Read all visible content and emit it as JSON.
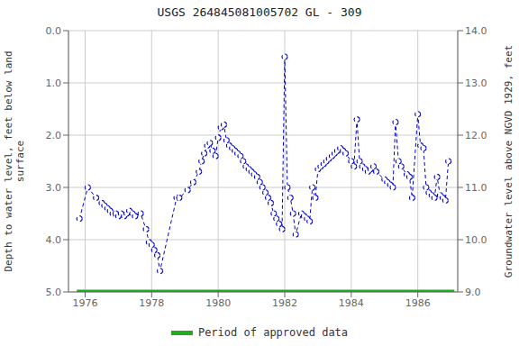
{
  "chart_data": {
    "type": "line",
    "title": "USGS 264845081005702 GL - 309",
    "y_label": "Depth to water level, feet below land\nsurface",
    "y2_label": "Groundwater level above NGVD 1929, feet",
    "xlim": [
      1975.5,
      1987.2
    ],
    "xticks": [
      1976,
      1978,
      1980,
      1982,
      1984,
      1986
    ],
    "ylim": [
      5.0,
      0.0
    ],
    "yticks": [
      {
        "value": 0.0,
        "label": "0.0"
      },
      {
        "value": 1.0,
        "label": "1.0"
      },
      {
        "value": 2.0,
        "label": "2.0"
      },
      {
        "value": 3.0,
        "label": "3.0"
      },
      {
        "value": 4.0,
        "label": "4.0"
      },
      {
        "value": 5.0,
        "label": "5.0"
      }
    ],
    "y2lim": [
      9.0,
      14.0
    ],
    "y2ticks": [
      {
        "value": 9.0,
        "label": "9.0"
      },
      {
        "value": 10.0,
        "label": "10.0"
      },
      {
        "value": 11.0,
        "label": "11.0"
      },
      {
        "value": 12.0,
        "label": "12.0"
      },
      {
        "value": 13.0,
        "label": "13.0"
      },
      {
        "value": 14.0,
        "label": "14.0"
      }
    ],
    "grid": true,
    "legend": "bottom",
    "series": [
      {
        "type": "line",
        "color": "#0000cc",
        "marker": "circle",
        "line_style": "dashed",
        "x": [
          1975.83,
          1976.08,
          1976.33,
          1976.5,
          1976.58,
          1976.67,
          1976.75,
          1976.83,
          1976.92,
          1977.0,
          1977.08,
          1977.17,
          1977.25,
          1977.33,
          1977.42,
          1977.5,
          1977.67,
          1977.83,
          1977.92,
          1978.0,
          1978.08,
          1978.17,
          1978.25,
          1978.75,
          1978.83,
          1979.08,
          1979.25,
          1979.42,
          1979.5,
          1979.58,
          1979.67,
          1979.75,
          1979.83,
          1979.92,
          1980.0,
          1980.08,
          1980.17,
          1980.25,
          1980.33,
          1980.42,
          1980.5,
          1980.58,
          1980.67,
          1980.75,
          1980.83,
          1980.92,
          1981.0,
          1981.08,
          1981.17,
          1981.25,
          1981.33,
          1981.42,
          1981.5,
          1981.58,
          1981.67,
          1981.75,
          1981.83,
          1981.92,
          1982.0,
          1982.08,
          1982.17,
          1982.25,
          1982.33,
          1982.5,
          1982.58,
          1982.67,
          1982.75,
          1982.83,
          1982.92,
          1983.0,
          1983.08,
          1983.17,
          1983.25,
          1983.33,
          1983.42,
          1983.5,
          1983.58,
          1983.67,
          1983.75,
          1983.83,
          1984.0,
          1984.08,
          1984.17,
          1984.25,
          1984.33,
          1984.42,
          1984.5,
          1984.58,
          1984.67,
          1984.75,
          1985.0,
          1985.08,
          1985.17,
          1985.25,
          1985.33,
          1985.42,
          1985.5,
          1985.67,
          1985.75,
          1985.83,
          1986.0,
          1986.08,
          1986.17,
          1986.25,
          1986.33,
          1986.42,
          1986.5,
          1986.58,
          1986.67,
          1986.75,
          1986.83,
          1986.92
        ],
        "values": [
          3.6,
          3.0,
          3.2,
          3.3,
          3.35,
          3.4,
          3.45,
          3.5,
          3.5,
          3.55,
          3.5,
          3.55,
          3.5,
          3.45,
          3.5,
          3.55,
          3.5,
          3.8,
          4.05,
          4.1,
          4.2,
          4.3,
          4.6,
          3.2,
          3.2,
          3.05,
          2.9,
          2.7,
          2.5,
          2.35,
          2.2,
          2.15,
          2.3,
          2.4,
          2.05,
          1.85,
          1.8,
          2.1,
          2.2,
          2.25,
          2.3,
          2.35,
          2.4,
          2.5,
          2.6,
          2.65,
          2.7,
          2.75,
          2.8,
          2.9,
          3.0,
          3.1,
          3.2,
          3.3,
          3.5,
          3.6,
          3.7,
          3.8,
          0.5,
          3.0,
          3.2,
          3.5,
          3.9,
          3.5,
          3.55,
          3.6,
          3.65,
          3.0,
          3.2,
          2.65,
          2.6,
          2.55,
          2.5,
          2.45,
          2.4,
          2.35,
          2.3,
          2.25,
          2.3,
          2.35,
          2.5,
          2.6,
          1.7,
          2.5,
          2.6,
          2.65,
          2.7,
          2.65,
          2.6,
          2.7,
          2.85,
          2.9,
          2.95,
          3.0,
          1.75,
          2.5,
          2.6,
          2.75,
          2.8,
          3.2,
          1.6,
          2.2,
          2.25,
          3.0,
          3.1,
          3.15,
          3.2,
          2.8,
          3.15,
          3.2,
          3.25,
          2.5
        ]
      },
      {
        "name": "Period of approved data",
        "type": "line",
        "color": "#22aa22",
        "line_style": "solid",
        "x": [
          1975.75,
          1987.1
        ],
        "values": [
          5.0,
          5.0
        ]
      }
    ]
  }
}
